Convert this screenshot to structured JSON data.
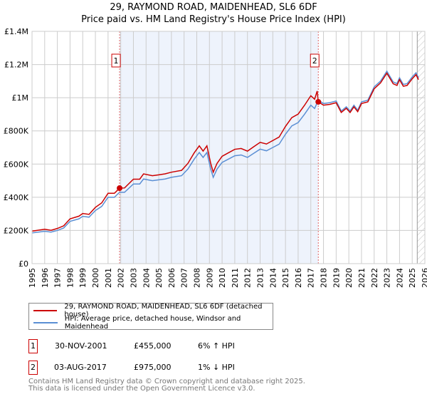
{
  "title": "29, RAYMOND ROAD, MAIDENHEAD, SL6 6DF",
  "subtitle": "Price paid vs. HM Land Registry's House Price Index (HPI)",
  "chart_data": {
    "type": "line",
    "xlim": [
      1995,
      2026
    ],
    "ylim": [
      0,
      1400000
    ],
    "x_ticks": [
      "1995",
      "1996",
      "1997",
      "1998",
      "1999",
      "2000",
      "2001",
      "2002",
      "2003",
      "2004",
      "2005",
      "2006",
      "2007",
      "2008",
      "2009",
      "2010",
      "2011",
      "2012",
      "2013",
      "2014",
      "2015",
      "2016",
      "2017",
      "2018",
      "2019",
      "2020",
      "2021",
      "2022",
      "2023",
      "2024",
      "2025",
      "2026"
    ],
    "y_ticks": [
      {
        "v": 0,
        "label": "£0"
      },
      {
        "v": 200000,
        "label": "£200K"
      },
      {
        "v": 400000,
        "label": "£400K"
      },
      {
        "v": 600000,
        "label": "£600K"
      },
      {
        "v": 800000,
        "label": "£800K"
      },
      {
        "v": 1000000,
        "label": "£1M"
      },
      {
        "v": 1200000,
        "label": "£1.2M"
      },
      {
        "v": 1400000,
        "label": "£1.4M"
      }
    ],
    "grid": true,
    "shaded_range": [
      2001.91,
      2017.59
    ],
    "forecast_hatch_from": 2025.4,
    "series": [
      {
        "name": "29, RAYMOND ROAD, MAIDENHEAD, SL6 6DF (detached house)",
        "color": "#cc0000",
        "x": [
          1995,
          1996,
          1996.5,
          1997,
          1997.5,
          1998,
          1998.7,
          1999,
          1999.5,
          2000,
          2000.5,
          2001,
          2001.5,
          2001.91,
          2002.3,
          2003,
          2003.5,
          2003.8,
          2004.5,
          2005,
          2005.5,
          2006,
          2006.8,
          2007.3,
          2007.8,
          2008.2,
          2008.5,
          2008.8,
          2009.1,
          2009.3,
          2009.6,
          2010,
          2010.5,
          2011,
          2011.5,
          2012,
          2012.5,
          2013,
          2013.5,
          2014,
          2014.5,
          2015,
          2015.5,
          2016,
          2016.5,
          2017,
          2017.3,
          2017.5,
          2017.59,
          2018,
          2018.5,
          2019,
          2019.4,
          2019.8,
          2020.1,
          2020.4,
          2020.7,
          2021,
          2021.5,
          2022,
          2022.5,
          2023,
          2023.5,
          2023.8,
          2024,
          2024.3,
          2024.6,
          2025,
          2025.3,
          2025.5
        ],
        "y": [
          196000,
          207000,
          201000,
          212000,
          228000,
          270000,
          286000,
          302000,
          297000,
          339000,
          366000,
          424000,
          424000,
          455000,
          456000,
          509000,
          509000,
          541000,
          530000,
          535000,
          541000,
          551000,
          562000,
          604000,
          668000,
          710000,
          678000,
          710000,
          604000,
          551000,
          604000,
          647000,
          668000,
          689000,
          694000,
          678000,
          705000,
          731000,
          721000,
          742000,
          763000,
          827000,
          880000,
          901000,
          954000,
          1012000,
          991000,
          1040000,
          975000,
          955000,
          960000,
          970000,
          911000,
          936000,
          911000,
          945000,
          916000,
          965000,
          975000,
          1054000,
          1089000,
          1148000,
          1084000,
          1074000,
          1109000,
          1069000,
          1074000,
          1114000,
          1139000,
          1109000
        ]
      },
      {
        "name": "HPI: Average price, detached house, Windsor and Maidenhead",
        "color": "#5b8fd4",
        "x": [
          1995,
          1996,
          1996.5,
          1997,
          1997.5,
          1998,
          1998.7,
          1999,
          1999.5,
          2000,
          2000.5,
          2001,
          2001.5,
          2001.91,
          2002.3,
          2003,
          2003.5,
          2003.8,
          2004.5,
          2005,
          2005.5,
          2006,
          2006.8,
          2007.3,
          2007.8,
          2008.2,
          2008.5,
          2008.8,
          2009.1,
          2009.3,
          2009.6,
          2010,
          2010.5,
          2011,
          2011.5,
          2012,
          2012.5,
          2013,
          2013.5,
          2014,
          2014.5,
          2015,
          2015.5,
          2016,
          2016.5,
          2017,
          2017.3,
          2017.59,
          2018,
          2018.5,
          2019,
          2019.4,
          2019.8,
          2020.1,
          2020.4,
          2020.7,
          2021,
          2021.5,
          2022,
          2022.5,
          2023,
          2023.5,
          2023.8,
          2024,
          2024.3,
          2024.6,
          2025,
          2025.3,
          2025.5
        ],
        "y": [
          185000,
          195000,
          190000,
          200000,
          215000,
          255000,
          270000,
          285000,
          280000,
          320000,
          345000,
          400000,
          400000,
          430000,
          430000,
          480000,
          480000,
          510000,
          500000,
          505000,
          510000,
          520000,
          530000,
          570000,
          630000,
          670000,
          640000,
          670000,
          570000,
          520000,
          570000,
          610000,
          630000,
          650000,
          655000,
          640000,
          665000,
          690000,
          680000,
          700000,
          720000,
          780000,
          830000,
          850000,
          900000,
          955000,
          935000,
          985000,
          965000,
          970000,
          980000,
          920000,
          945000,
          920000,
          955000,
          925000,
          975000,
          985000,
          1065000,
          1100000,
          1160000,
          1095000,
          1085000,
          1120000,
          1080000,
          1085000,
          1125000,
          1150000,
          1120000
        ]
      }
    ],
    "sales": [
      {
        "label": "1",
        "x": 2001.91,
        "y": 455000
      },
      {
        "label": "2",
        "x": 2017.59,
        "y": 975000
      }
    ]
  },
  "legend": {
    "red": "29, RAYMOND ROAD, MAIDENHEAD, SL6 6DF (detached house)",
    "blue": "HPI: Average price, detached house, Windsor and Maidenhead"
  },
  "transactions": [
    {
      "num": "1",
      "date": "30-NOV-2001",
      "price": "£455,000",
      "hpi": "6% ↑ HPI"
    },
    {
      "num": "2",
      "date": "03-AUG-2017",
      "price": "£975,000",
      "hpi": "1% ↓ HPI"
    }
  ],
  "footer": {
    "line1": "Contains HM Land Registry data © Crown copyright and database right 2025.",
    "line2": "This data is licensed under the Open Government Licence v3.0."
  }
}
